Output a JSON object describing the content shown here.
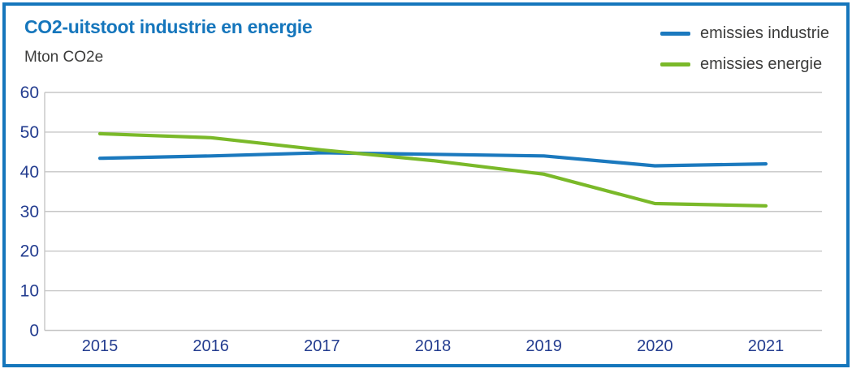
{
  "chart": {
    "title": "CO2-uitstoot industrie en energie",
    "unit_label": "Mton CO2e"
  },
  "colors": {
    "accent_border": "#1576BC",
    "title_text": "#1576BC",
    "axis_tick_text": "#233C8F",
    "gridline": "#C6C6C6",
    "body_text": "#3C3C3B",
    "industrie_line": "#1B79BE",
    "energie_line": "#7AB929"
  },
  "chart_data": {
    "type": "line",
    "title": "CO2-uitstoot industrie en energie",
    "ylabel": "Mton CO2e",
    "xlabel": "",
    "x": [
      2015,
      2016,
      2017,
      2018,
      2019,
      2020,
      2021
    ],
    "series": [
      {
        "name": "emissies industrie",
        "color": "#1B79BE",
        "values": [
          43.4,
          44.0,
          44.8,
          44.4,
          44.0,
          41.5,
          42.0
        ]
      },
      {
        "name": "emissies energie",
        "color": "#7AB929",
        "values": [
          49.6,
          48.6,
          45.5,
          42.8,
          39.4,
          32.0,
          31.4
        ]
      }
    ],
    "ylim": [
      0,
      60
    ],
    "yticks": [
      0,
      10,
      20,
      30,
      40,
      50,
      60
    ],
    "grid": true,
    "legend_position": "top-right"
  }
}
